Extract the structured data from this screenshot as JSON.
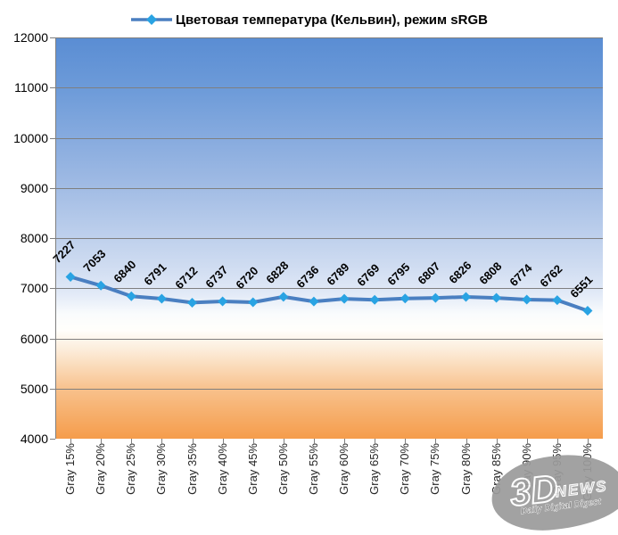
{
  "legend": {
    "label": "Цветовая температура (Кельвин), режим sRGB"
  },
  "watermark": {
    "big": "3D",
    "news": "NEWS",
    "subtitle": "Daily Digital Digest"
  },
  "chart_data": {
    "type": "line",
    "title": "Цветовая температура (Кельвин), режим sRGB",
    "xlabel": "",
    "ylabel": "",
    "categories": [
      "Gray 15%",
      "Gray 20%",
      "Gray 25%",
      "Gray 30%",
      "Gray 35%",
      "Gray 40%",
      "Gray 45%",
      "Gray 50%",
      "Gray 55%",
      "Gray 60%",
      "Gray 65%",
      "Gray 70%",
      "Gray 75%",
      "Gray 80%",
      "Gray 85%",
      "Gray 90%",
      "Gray 95%",
      "Gray 100%"
    ],
    "series": [
      {
        "name": "Цветовая температура (Кельвин), режим sRGB",
        "values": [
          7227,
          7053,
          6840,
          6791,
          6712,
          6737,
          6720,
          6828,
          6736,
          6789,
          6769,
          6795,
          6807,
          6826,
          6808,
          6774,
          6762,
          6551
        ]
      }
    ],
    "data_labels": true,
    "ylim": [
      4000,
      12000
    ],
    "yticks": [
      12000,
      11000,
      10000,
      9000,
      8000,
      7000,
      6000,
      5000,
      4000
    ],
    "grid": true,
    "legend_position": "top",
    "line_color": "#4a7fc1",
    "marker_color": "#29a3e3",
    "grid_color": "#7f7f7f",
    "plot_bg_top": "#5a8dd3",
    "plot_bg_middle": "#ffffff",
    "plot_bg_bottom": "#f59c4b"
  }
}
